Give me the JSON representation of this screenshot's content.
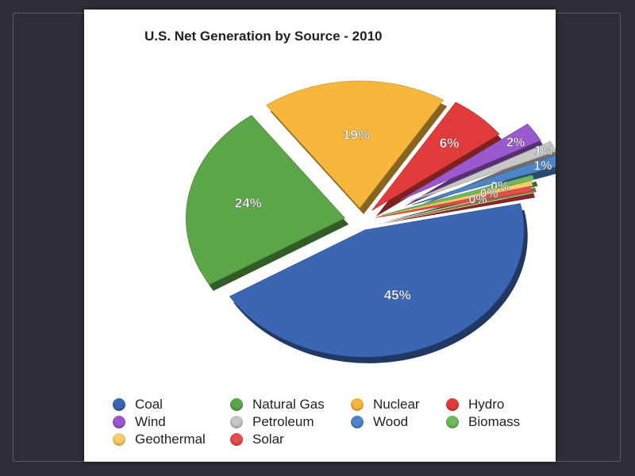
{
  "chart_data": {
    "type": "pie",
    "title": "U.S. Net Generation by Source - 2010",
    "categories": [
      "Coal",
      "Natural Gas",
      "Nuclear",
      "Hydro",
      "Wind",
      "Petroleum",
      "Wood",
      "Biomass",
      "Geothermal",
      "Solar"
    ],
    "values": [
      45,
      24,
      19,
      6,
      2,
      1,
      1,
      0,
      0,
      0
    ],
    "data_labels": [
      "45%",
      "24%",
      "19%",
      "6%",
      "2%",
      "1%",
      "1%",
      "0%",
      "0%",
      "0%"
    ],
    "colors": [
      "#3a66b3",
      "#5aa648",
      "#f6b73c",
      "#e23b3b",
      "#9b59d0",
      "#c7c7c7",
      "#4d86c8",
      "#6dbb5c",
      "#f8cc66",
      "#e84c4c"
    ],
    "legend_position": "bottom",
    "style": "exploded 3d"
  }
}
